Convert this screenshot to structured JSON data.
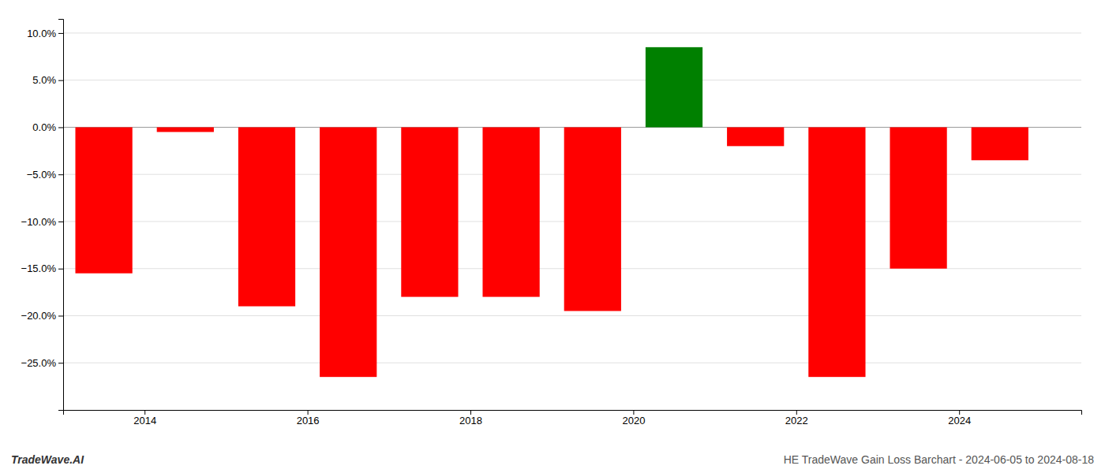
{
  "chart_data": {
    "type": "bar",
    "x": [
      2013.5,
      2014.5,
      2015.5,
      2016.5,
      2017.5,
      2018.5,
      2019.5,
      2020.5,
      2021.5,
      2022.5,
      2023.5,
      2024.5
    ],
    "values": [
      -0.155,
      -0.005,
      -0.19,
      -0.265,
      -0.18,
      -0.18,
      -0.195,
      0.085,
      -0.02,
      -0.265,
      -0.15,
      -0.035
    ],
    "colors": [
      "#ff0000",
      "#ff0000",
      "#ff0000",
      "#ff0000",
      "#ff0000",
      "#ff0000",
      "#ff0000",
      "#008000",
      "#ff0000",
      "#ff0000",
      "#ff0000",
      "#ff0000"
    ],
    "xlim": [
      2013.0,
      2025.5
    ],
    "xticks": [
      2014,
      2016,
      2018,
      2020,
      2022,
      2024
    ],
    "ylim": [
      -0.3,
      0.115
    ],
    "yticks": [
      {
        "value": -0.25,
        "label": "−25.0%"
      },
      {
        "value": -0.2,
        "label": "−20.0%"
      },
      {
        "value": -0.15,
        "label": "−15.0%"
      },
      {
        "value": -0.1,
        "label": "−10.0%"
      },
      {
        "value": -0.05,
        "label": "−5.0%"
      },
      {
        "value": 0.0,
        "label": "0.0%"
      },
      {
        "value": 0.05,
        "label": "5.0%"
      },
      {
        "value": 0.1,
        "label": "10.0%"
      }
    ],
    "grid": true,
    "annotations": [
      "TradeWave.AI",
      "HE TradeWave Gain Loss Barchart - 2024-06-05 to 2024-08-18"
    ]
  }
}
